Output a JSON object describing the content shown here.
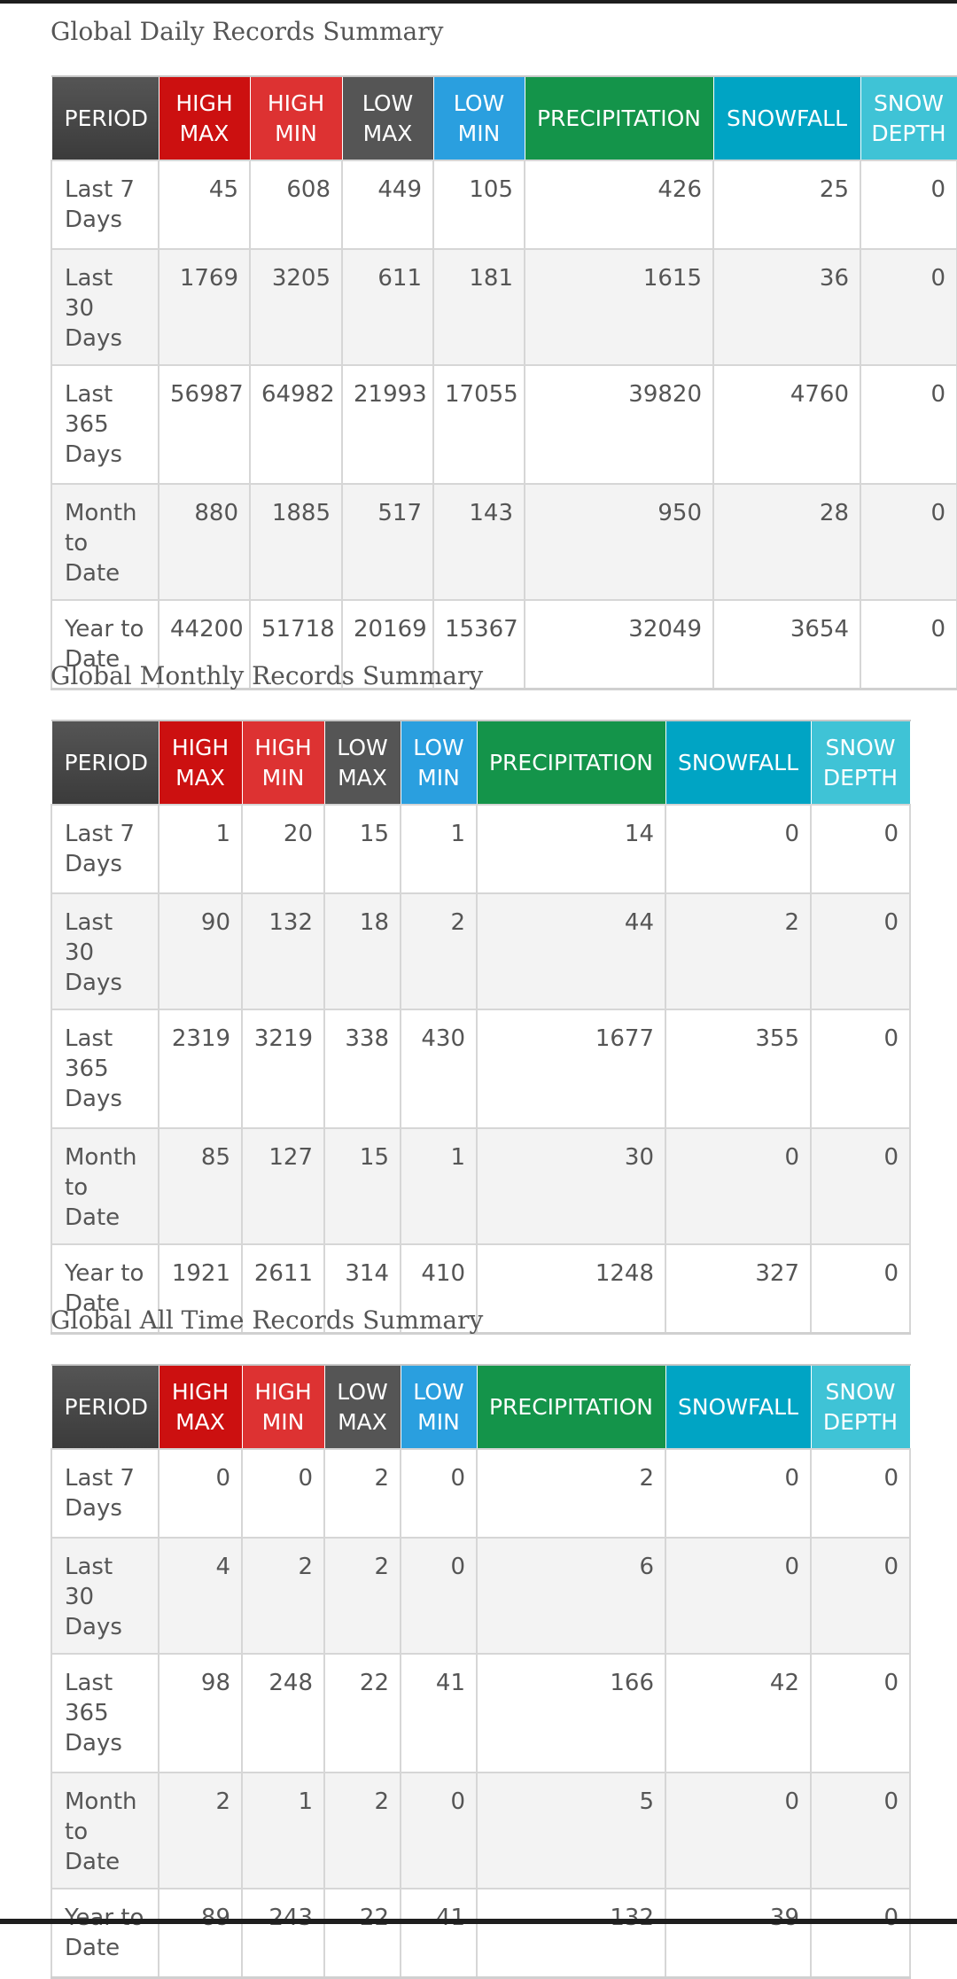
{
  "header_colors": {
    "period": "#444444",
    "high_max": "#cc1010",
    "high_min": "#dd3232",
    "low_max": "#555555",
    "low_min": "#2a9fdf",
    "precipitation": "#14944a",
    "snowfall": "#00a4c4",
    "snow_depth": "#3fc3d6"
  },
  "columns": {
    "period": "PERIOD",
    "high_max": [
      "HIGH",
      "MAX"
    ],
    "high_min": [
      "HIGH",
      "MIN"
    ],
    "low_max": [
      "LOW",
      "MAX"
    ],
    "low_min": [
      "LOW",
      "MIN"
    ],
    "precipitation": "PRECIPITATION",
    "snowfall": "SNOWFALL",
    "snow_depth": [
      "SNOW",
      "DEPTH"
    ]
  },
  "tables": [
    {
      "title": "Global Daily Records Summary",
      "rows": [
        {
          "period": "Last 7 Days",
          "values": [
            "45",
            "608",
            "449",
            "105",
            "426",
            "25",
            "0"
          ]
        },
        {
          "period": "Last 30 Days",
          "values": [
            "1769",
            "3205",
            "611",
            "181",
            "1615",
            "36",
            "0"
          ]
        },
        {
          "period": "Last 365 Days",
          "values": [
            "56987",
            "64982",
            "21993",
            "17055",
            "39820",
            "4760",
            "0"
          ]
        },
        {
          "period": "Month to Date",
          "values": [
            "880",
            "1885",
            "517",
            "143",
            "950",
            "28",
            "0"
          ]
        },
        {
          "period": "Year to Date",
          "values": [
            "44200",
            "51718",
            "20169",
            "15367",
            "32049",
            "3654",
            "0"
          ]
        }
      ]
    },
    {
      "title": "Global Monthly Records Summary",
      "rows": [
        {
          "period": "Last 7 Days",
          "values": [
            "1",
            "20",
            "15",
            "1",
            "14",
            "0",
            "0"
          ]
        },
        {
          "period": "Last 30 Days",
          "values": [
            "90",
            "132",
            "18",
            "2",
            "44",
            "2",
            "0"
          ]
        },
        {
          "period": "Last 365 Days",
          "values": [
            "2319",
            "3219",
            "338",
            "430",
            "1677",
            "355",
            "0"
          ]
        },
        {
          "period": "Month to Date",
          "values": [
            "85",
            "127",
            "15",
            "1",
            "30",
            "0",
            "0"
          ]
        },
        {
          "period": "Year to Date",
          "values": [
            "1921",
            "2611",
            "314",
            "410",
            "1248",
            "327",
            "0"
          ]
        }
      ]
    },
    {
      "title": "Global All Time Records Summary",
      "rows": [
        {
          "period": "Last 7 Days",
          "values": [
            "0",
            "0",
            "2",
            "0",
            "2",
            "0",
            "0"
          ]
        },
        {
          "period": "Last 30 Days",
          "values": [
            "4",
            "2",
            "2",
            "0",
            "6",
            "0",
            "0"
          ]
        },
        {
          "period": "Last 365 Days",
          "values": [
            "98",
            "248",
            "22",
            "41",
            "166",
            "42",
            "0"
          ]
        },
        {
          "period": "Month to Date",
          "values": [
            "2",
            "1",
            "2",
            "0",
            "5",
            "0",
            "0"
          ]
        },
        {
          "period": "Year to Date",
          "values": [
            "89",
            "243",
            "22",
            "41",
            "132",
            "39",
            "0"
          ]
        }
      ]
    }
  ]
}
